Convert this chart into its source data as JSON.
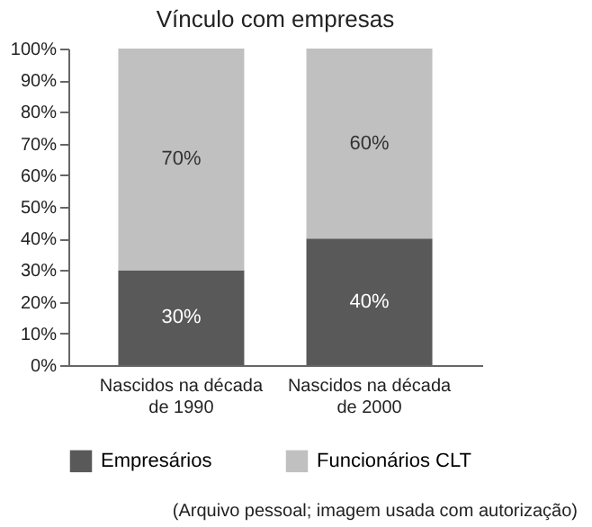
{
  "chart_data": {
    "type": "bar",
    "title": "Vínculo com empresas",
    "stacked": true,
    "categories": [
      "Nascidos na década de 1990",
      "Nascidos na década de 2000"
    ],
    "series": [
      {
        "name": "Empresários",
        "color": "#595959",
        "values": [
          30,
          40
        ],
        "value_labels": [
          "30%",
          "40%"
        ]
      },
      {
        "name": "Funcionários CLT",
        "color": "#c0c0c0",
        "values": [
          70,
          60
        ],
        "value_labels": [
          "70%",
          "60%"
        ]
      }
    ],
    "ylim": [
      0,
      100
    ],
    "yticks": [
      {
        "value": 0,
        "label": "0%"
      },
      {
        "value": 10,
        "label": "10%"
      },
      {
        "value": 20,
        "label": "20%"
      },
      {
        "value": 30,
        "label": "30%"
      },
      {
        "value": 40,
        "label": "40%"
      },
      {
        "value": 50,
        "label": "50%"
      },
      {
        "value": 60,
        "label": "60%"
      },
      {
        "value": 70,
        "label": "70%"
      },
      {
        "value": 80,
        "label": "80%"
      },
      {
        "value": 90,
        "label": "90%"
      },
      {
        "value": 100,
        "label": "100%"
      }
    ],
    "grid": false,
    "legend": "bottom",
    "annotations": [
      "(Arquivo pessoal; imagem usada com autorização)"
    ]
  }
}
